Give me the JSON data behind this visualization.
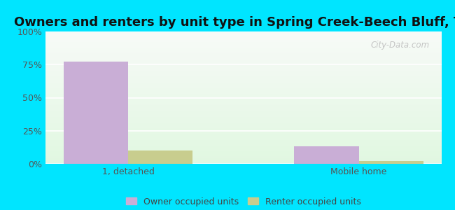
{
  "title": "Owners and renters by unit type in Spring Creek-Beech Bluff, TN",
  "categories": [
    "1, detached",
    "Mobile home"
  ],
  "owner_values": [
    77,
    13
  ],
  "renter_values": [
    10,
    2
  ],
  "owner_color": "#c9aed6",
  "renter_color": "#c8cd8e",
  "ylim": [
    0,
    100
  ],
  "yticks": [
    0,
    25,
    50,
    75,
    100
  ],
  "ytick_labels": [
    "0%",
    "25%",
    "50%",
    "75%",
    "100%"
  ],
  "bar_width": 0.28,
  "outer_bg": "#00e5ff",
  "title_fontsize": 13,
  "legend_labels": [
    "Owner occupied units",
    "Renter occupied units"
  ],
  "watermark": "City-Data.com"
}
